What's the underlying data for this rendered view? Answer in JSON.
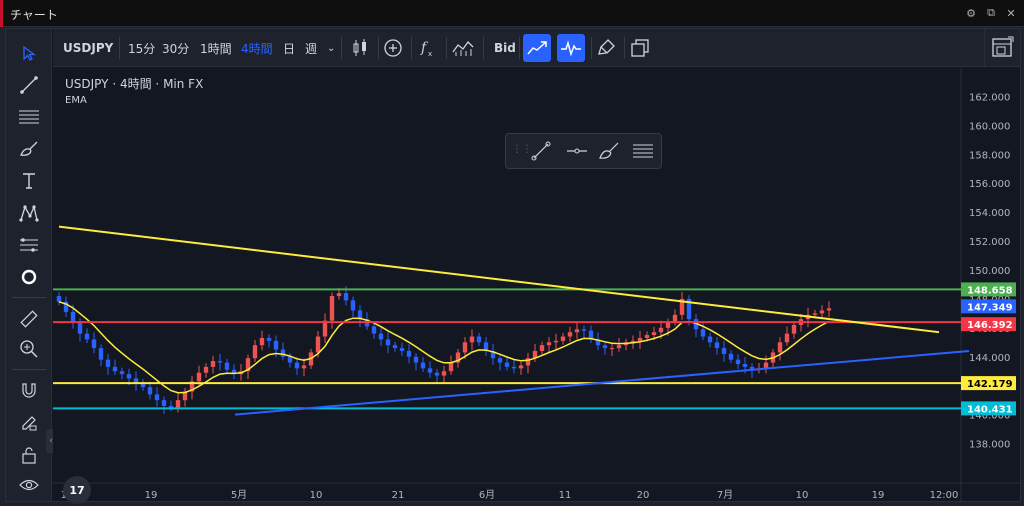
{
  "window": {
    "title": "チャート",
    "icons": [
      "settings-icon",
      "popout-icon",
      "close-icon"
    ]
  },
  "toolbar": {
    "symbol": "USDJPY",
    "intervals": [
      {
        "label": "15分",
        "active": false
      },
      {
        "label": "30分",
        "active": false
      },
      {
        "label": "1時間",
        "active": false
      },
      {
        "label": "4時間",
        "active": true
      },
      {
        "label": "日",
        "active": false
      },
      {
        "label": "週",
        "active": false
      }
    ],
    "price_type": "Bid",
    "accent_color": "#2962ff"
  },
  "legend": {
    "symbol": "USDJPY",
    "interval": "4時間",
    "source": "Min FX",
    "indicator": "EMA"
  },
  "chart_data": {
    "type": "candlestick",
    "title": "",
    "price_axis": {
      "ticks": [
        "162.000",
        "160.000",
        "158.000",
        "156.000",
        "154.000",
        "152.000",
        "150.000",
        "148.000",
        "146.000",
        "144.000",
        "142.000",
        "140.000",
        "138.000"
      ],
      "range": [
        137.0,
        163.0
      ]
    },
    "time_axis": {
      "ticks": [
        "10",
        "19",
        "5月",
        "10",
        "21",
        "6月",
        "11",
        "20",
        "7月",
        "10",
        "19",
        "12:00"
      ]
    },
    "price_labels": [
      {
        "value": "148.658",
        "color": "#4caf50"
      },
      {
        "value": "147.349",
        "color": "#2962ff"
      },
      {
        "value": "146.392",
        "color": "#f23645"
      },
      {
        "value": "142.179",
        "color": "#ffeb3b"
      },
      {
        "value": "140.431",
        "color": "#00bcd4"
      }
    ],
    "horizontal_lines": [
      {
        "price": 148.658,
        "color": "#4caf50"
      },
      {
        "price": 146.392,
        "color": "#f23645"
      },
      {
        "price": 142.179,
        "color": "#ffeb3b"
      },
      {
        "price": 140.431,
        "color": "#00bcd4"
      }
    ],
    "trend_lines": [
      {
        "color": "#ffeb3b",
        "from": [
          0,
          153.0
        ],
        "to": [
          172,
          145.7
        ]
      },
      {
        "color": "#2962ff",
        "from": [
          20,
          140.0
        ],
        "to": [
          180,
          144.4
        ]
      }
    ],
    "close_series": [
      147.8,
      147.1,
      146.4,
      145.6,
      145.2,
      144.6,
      143.8,
      143.3,
      143.0,
      142.8,
      142.5,
      142.2,
      141.9,
      141.4,
      141.0,
      140.6,
      140.5,
      141.0,
      141.6,
      142.3,
      142.9,
      143.3,
      143.7,
      143.6,
      143.1,
      142.8,
      143.0,
      143.9,
      144.8,
      145.3,
      145.1,
      144.5,
      144.0,
      143.6,
      143.2,
      143.4,
      144.3,
      145.4,
      146.5,
      148.2,
      148.4,
      147.9,
      147.2,
      146.6,
      146.1,
      145.6,
      145.2,
      144.8,
      144.6,
      144.4,
      144.0,
      143.6,
      143.2,
      142.9,
      142.7,
      143.0,
      143.6,
      144.3,
      145.0,
      145.4,
      145.0,
      144.4,
      143.9,
      143.6,
      143.3,
      143.2,
      143.4,
      143.9,
      144.4,
      144.8,
      145.0,
      145.1,
      145.4,
      145.7,
      145.9,
      145.8,
      145.2,
      144.8,
      144.6,
      144.6,
      144.8,
      145.0,
      145.1,
      145.3,
      145.5,
      145.7,
      146.0,
      146.4,
      146.9,
      148.0,
      146.6,
      145.9,
      145.4,
      145.0,
      144.6,
      144.2,
      143.8,
      143.5,
      143.3,
      143.1,
      143.2,
      143.6,
      144.3,
      145.0,
      145.6,
      146.2,
      146.6,
      146.9,
      147.0,
      147.2,
      147.349
    ]
  }
}
